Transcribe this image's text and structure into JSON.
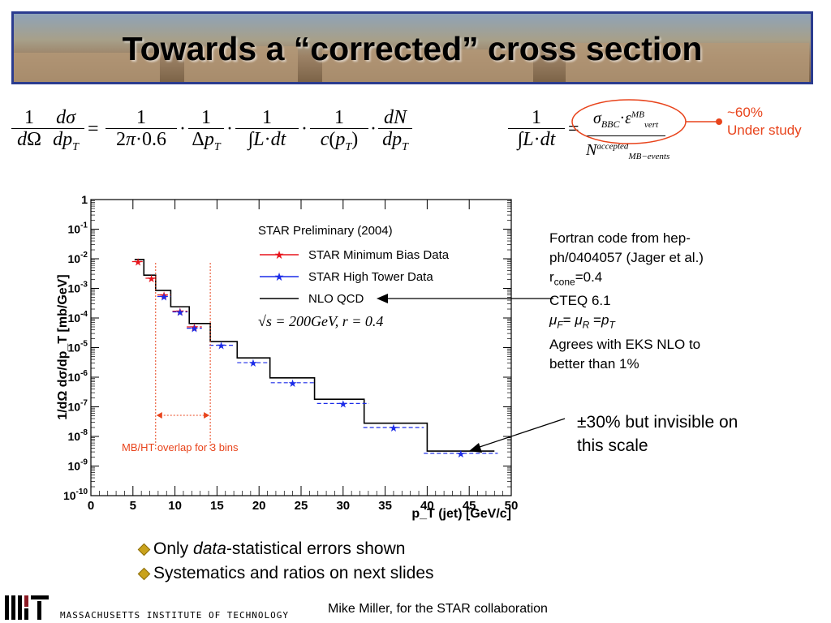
{
  "slide": {
    "title": "Towards a “corrected” cross section",
    "annotation_percent": "~60%",
    "annotation_status": "Under study",
    "info_lines": [
      "Fortran code from hep-",
      "ph/0404057 (Jager et al.)",
      "r",
      "cone",
      "=0.4",
      "CTEQ 6.1",
      "Agrees with EKS NLO to",
      "better than 1%"
    ],
    "scale_note_line1": "±30% but invisible on",
    "scale_note_line2": "this scale",
    "overlap_label": "MB/HT overlap for 3 bins",
    "bullets": [
      "Only ",
      "data",
      "-statistical errors shown",
      "Systematics and ratios on next slides"
    ],
    "footer_institution": "MASSACHUSETTS INSTITUTE OF TECHNOLOGY",
    "footer_credit": "Mike Miller, for the STAR collaboration",
    "colors": {
      "banner_border": "#2b3c8f",
      "annotation_red": "#e8441c",
      "nlo": "#000000",
      "mb": "#e8141c",
      "ht": "#1c2ce8"
    }
  },
  "chart_data": {
    "type": "line",
    "legend_title": "STAR Preliminary (2004)",
    "legend_placement": "top-right",
    "xlabel": "p_T (jet) [GeV/c]",
    "ylabel": "1/dΩ dσ/dp_T [mb/GeV]",
    "xlim": [
      0,
      50
    ],
    "ylim_log10": [
      -10,
      0
    ],
    "xticks": [
      "0",
      "5",
      "10",
      "15",
      "20",
      "25",
      "30",
      "35",
      "40",
      "45",
      "50"
    ],
    "yticks": [
      "10^-10",
      "10^-9",
      "10^-8",
      "10^-7",
      "10^-6",
      "10^-5",
      "10^-4",
      "10^-3",
      "10^-2",
      "10^-1",
      "1"
    ],
    "energy_label": "√s = 200GeV, r = 0.4",
    "series": [
      {
        "name": "STAR Minimum Bias Data",
        "marker": "red-star",
        "x": [
          5.6,
          7.2,
          8.7,
          10.6,
          12.3
        ],
        "y": [
          0.008,
          0.0022,
          0.0006,
          0.00017,
          5e-05
        ],
        "xerr": [
          0.7,
          0.7,
          0.8,
          0.9,
          0.9
        ]
      },
      {
        "name": "STAR High Tower Data",
        "marker": "blue-star",
        "x": [
          8.7,
          10.6,
          12.3,
          15.5,
          19.3,
          24,
          30,
          36,
          44
        ],
        "y": [
          0.00053,
          0.00016,
          4.5e-05,
          1.2e-05,
          3.1e-06,
          6.5e-07,
          1.3e-07,
          2e-08,
          2.7e-09
        ],
        "xerr": [
          0.8,
          0.9,
          0.9,
          1.4,
          1.9,
          2.6,
          3.1,
          3.6,
          4.4
        ]
      },
      {
        "name": "NLO QCD",
        "marker": "line",
        "edges": [
          5.2,
          6.3,
          7.7,
          9.5,
          11.7,
          14.2,
          17.4,
          21.3,
          26.6,
          32.5,
          40.0,
          48.0
        ],
        "y": [
          0.0095,
          0.0028,
          0.00085,
          0.00024,
          6.5e-05,
          1.6e-05,
          4.5e-06,
          9.5e-07,
          1.8e-07,
          2.8e-08,
          3.2e-09
        ]
      }
    ]
  }
}
